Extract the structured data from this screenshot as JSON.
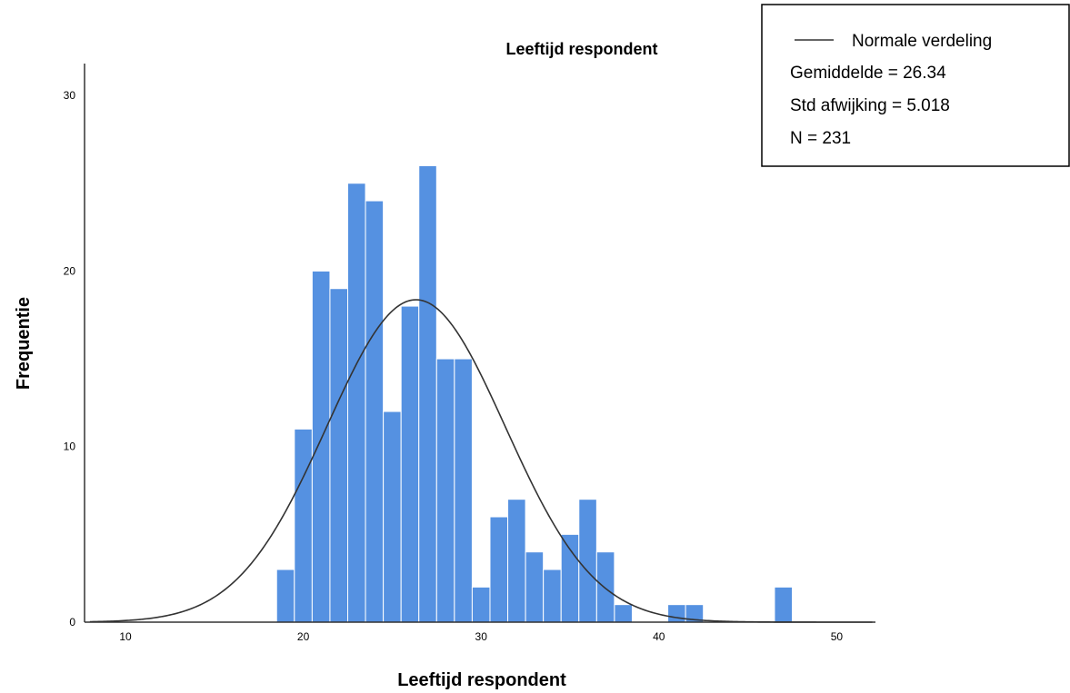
{
  "chart_data": {
    "type": "bar",
    "subtype": "histogram",
    "title": "Leeftijd respondent",
    "xlabel": "Leeftijd respondent",
    "ylabel": "Frequentie",
    "xlim": [
      8,
      52
    ],
    "ylim": [
      0,
      30
    ],
    "x_ticks": [
      "10",
      "20",
      "30",
      "40",
      "50"
    ],
    "y_ticks": [
      "0",
      "10",
      "20",
      "30"
    ],
    "bin_width": 1,
    "bins": [
      {
        "x": 19,
        "count": 3
      },
      {
        "x": 20,
        "count": 11
      },
      {
        "x": 21,
        "count": 20
      },
      {
        "x": 22,
        "count": 19
      },
      {
        "x": 23,
        "count": 25
      },
      {
        "x": 24,
        "count": 24
      },
      {
        "x": 25,
        "count": 12
      },
      {
        "x": 26,
        "count": 18
      },
      {
        "x": 27,
        "count": 26
      },
      {
        "x": 28,
        "count": 15
      },
      {
        "x": 29,
        "count": 15
      },
      {
        "x": 30,
        "count": 2
      },
      {
        "x": 31,
        "count": 6
      },
      {
        "x": 32,
        "count": 7
      },
      {
        "x": 33,
        "count": 4
      },
      {
        "x": 34,
        "count": 3
      },
      {
        "x": 35,
        "count": 5
      },
      {
        "x": 36,
        "count": 7
      },
      {
        "x": 37,
        "count": 4
      },
      {
        "x": 38,
        "count": 1
      },
      {
        "x": 41,
        "count": 1
      },
      {
        "x": 42,
        "count": 1
      },
      {
        "x": 47,
        "count": 2
      }
    ],
    "normal_curve": {
      "mean": 26.34,
      "sd": 5.018,
      "n": 231
    },
    "legend": {
      "placement": "top-right",
      "series_name": "Normale verdeling",
      "lines": [
        "Gemiddelde = 26.34",
        "Std afwijking = 5.018",
        "N = 231"
      ]
    },
    "colors": {
      "bar": "#5591e1",
      "bar_edge": "#ffffff",
      "curve": "#333333",
      "axis": "#333333"
    },
    "grid": false
  }
}
